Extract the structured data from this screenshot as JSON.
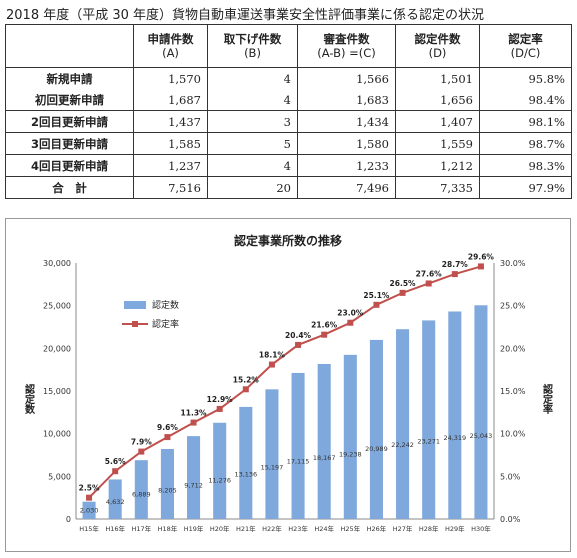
{
  "page": {
    "title": "2018 年度（平成 30 年度）貨物自動車運送事業安全性評価事業に係る認定の状況"
  },
  "table": {
    "headers": [
      {
        "label": "",
        "sub": ""
      },
      {
        "label": "申請件数",
        "sub": "(A)"
      },
      {
        "label": "取下げ件数",
        "sub": "(B)"
      },
      {
        "label": "審査件数",
        "sub": "(A-B) =(C)"
      },
      {
        "label": "認定件数",
        "sub": "(D)"
      },
      {
        "label": "認定率",
        "sub": "(D/C)"
      }
    ],
    "rows": [
      {
        "label": "新規申請",
        "values": [
          "1,570",
          "4",
          "1,566",
          "1,501",
          "95.8%"
        ]
      },
      {
        "label": "初回更新申請",
        "values": [
          "1,687",
          "4",
          "1,683",
          "1,656",
          "98.4%"
        ]
      },
      {
        "label": "2回目更新申請",
        "values": [
          "1,437",
          "3",
          "1,434",
          "1,407",
          "98.1%"
        ]
      },
      {
        "label": "3回目更新申請",
        "values": [
          "1,585",
          "5",
          "1,580",
          "1,559",
          "98.7%"
        ]
      },
      {
        "label": "4回目更新申請",
        "values": [
          "1,237",
          "4",
          "1,233",
          "1,212",
          "98.3%"
        ]
      },
      {
        "label": "合　計",
        "values": [
          "7,516",
          "20",
          "7,496",
          "7,335",
          "97.9%"
        ]
      }
    ]
  },
  "chart_data": {
    "type": "bar",
    "title": "認定事業所数の推移",
    "categories": [
      "H15年",
      "H16年",
      "H17年",
      "H18年",
      "H19年",
      "H20年",
      "H21年",
      "H22年",
      "H23年",
      "H24年",
      "H25年",
      "H26年",
      "H27年",
      "H28年",
      "H29年",
      "H30年"
    ],
    "series": [
      {
        "name": "認定数",
        "type": "bar",
        "color": "#7fa8dc",
        "values": [
          2030,
          4632,
          6889,
          8205,
          9712,
          11276,
          13136,
          15197,
          17115,
          18167,
          19238,
          20989,
          22242,
          23271,
          24319,
          25043
        ],
        "labels": [
          "2,030",
          "4,632",
          "6,889",
          "8,205",
          "9,712",
          "11,276",
          "13,136",
          "15,197",
          "17,115",
          "18,167",
          "19,238",
          "20,989",
          "22,242",
          "23,271",
          "24,319",
          "25,043"
        ]
      },
      {
        "name": "認定率",
        "type": "line",
        "axis": "right",
        "color": "#c0504d",
        "values": [
          2.5,
          5.6,
          7.9,
          9.6,
          11.3,
          12.9,
          15.2,
          18.1,
          20.4,
          21.6,
          23.0,
          25.1,
          26.5,
          27.6,
          28.7,
          29.6
        ],
        "labels": [
          "2.5%",
          "5.6%",
          "7.9%",
          "9.6%",
          "11.3%",
          "12.9%",
          "15.2%",
          "18.1%",
          "20.4%",
          "21.6%",
          "23.0%",
          "25.1%",
          "26.5%",
          "27.6%",
          "28.7%",
          "29.6%"
        ]
      }
    ],
    "ylabel": "認定数",
    "y2label": "認定率",
    "ylim": [
      0,
      30000
    ],
    "y2lim": [
      0,
      30
    ],
    "yticks": [
      "0",
      "5,000",
      "10,000",
      "15,000",
      "20,000",
      "25,000",
      "30,000"
    ],
    "y2ticks": [
      "0.0%",
      "5.0%",
      "10.0%",
      "15.0%",
      "20.0%",
      "25.0%",
      "30.0%"
    ],
    "grid": false,
    "legend": "upper-left"
  }
}
